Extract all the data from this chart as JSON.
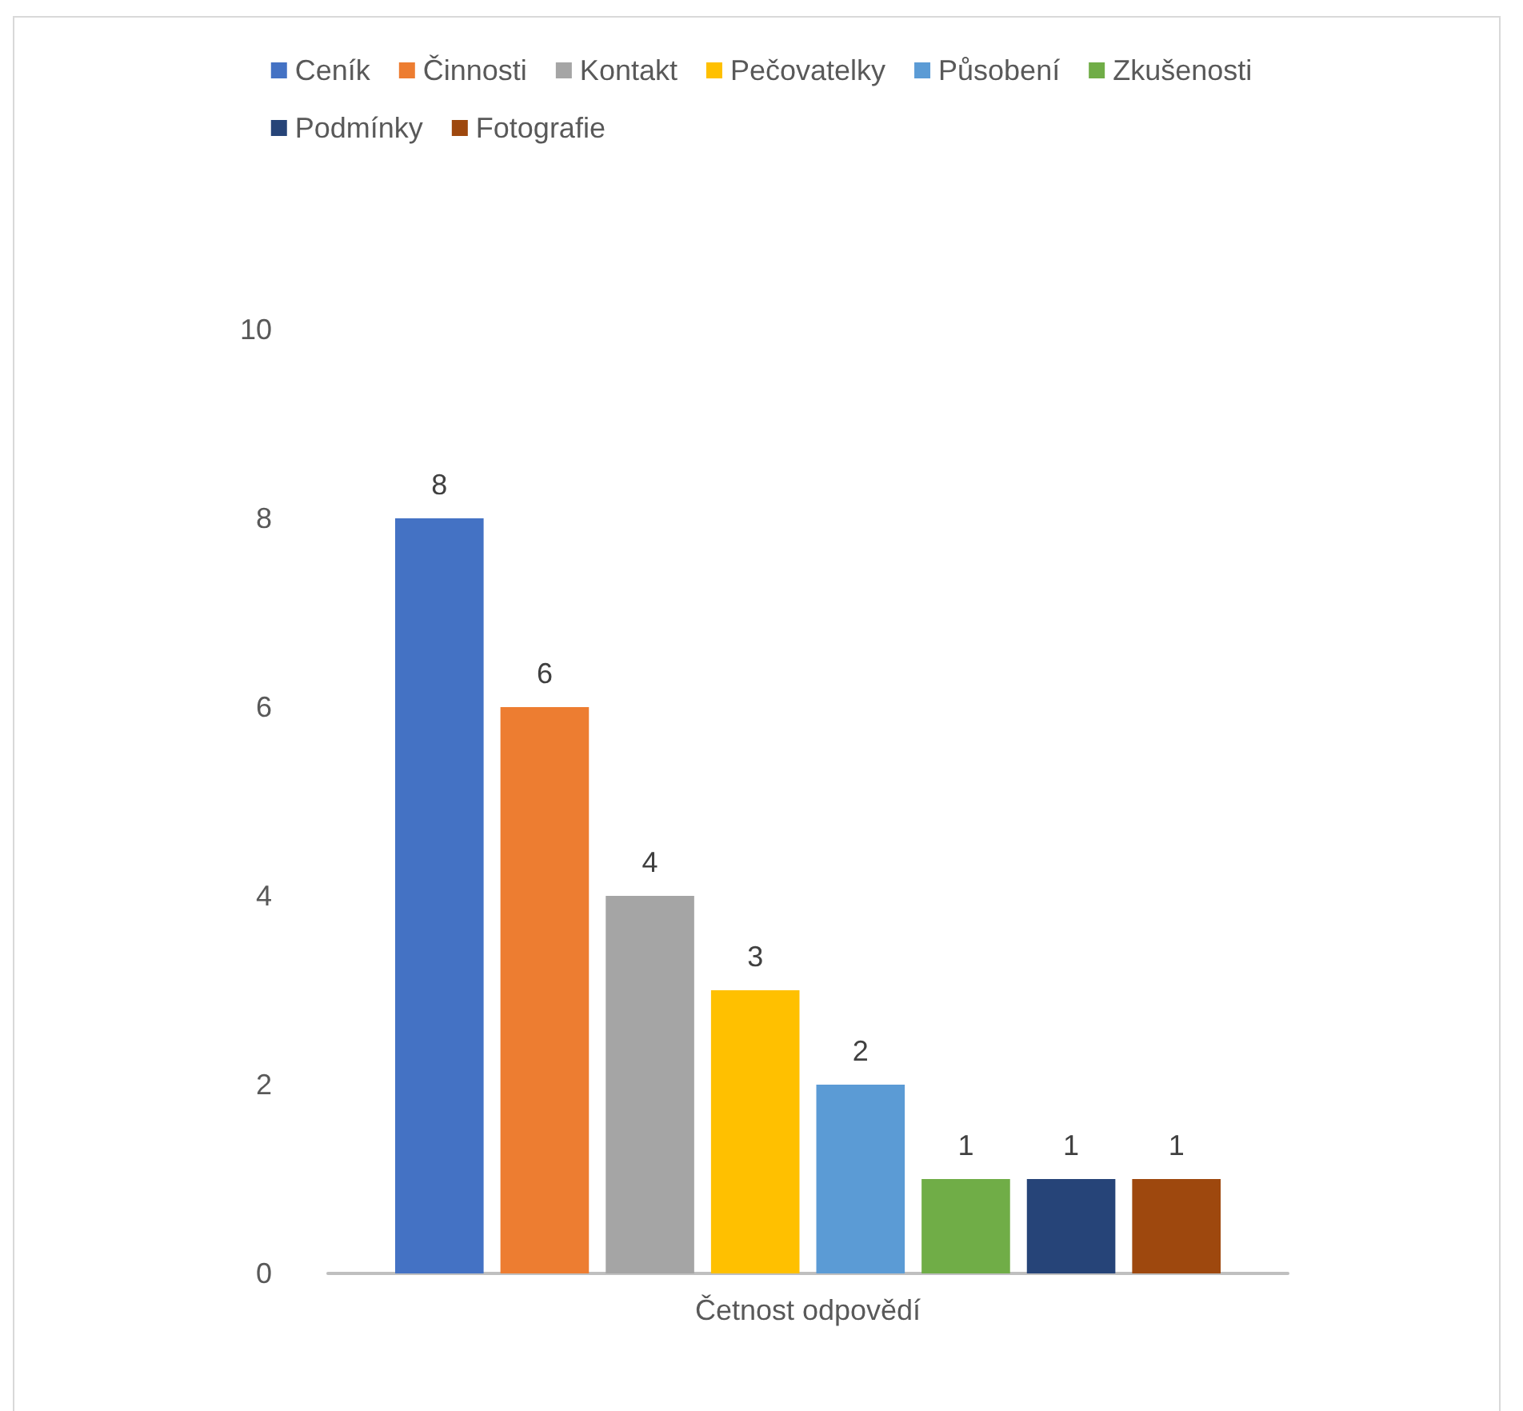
{
  "chart_data": {
    "type": "bar",
    "categories": [
      "Četnost odpovědí"
    ],
    "series": [
      {
        "name": "Ceník",
        "color": "#4472c4",
        "values": [
          8
        ]
      },
      {
        "name": "Činnosti",
        "color": "#ed7d31",
        "values": [
          6
        ]
      },
      {
        "name": "Kontakt",
        "color": "#a5a5a5",
        "values": [
          4
        ]
      },
      {
        "name": "Pečovatelky",
        "color": "#ffc000",
        "values": [
          3
        ]
      },
      {
        "name": "Působení",
        "color": "#5b9bd5",
        "values": [
          2
        ]
      },
      {
        "name": "Zkušenosti",
        "color": "#70ad47",
        "values": [
          1
        ]
      },
      {
        "name": "Podmínky",
        "color": "#264478",
        "values": [
          1
        ]
      },
      {
        "name": "Fotografie",
        "color": "#9e480e",
        "values": [
          1
        ]
      }
    ],
    "ylim": [
      0,
      10
    ],
    "yticks": [
      0,
      2,
      4,
      6,
      8,
      10
    ],
    "data_labels": true,
    "grid": false,
    "legend": "top"
  }
}
